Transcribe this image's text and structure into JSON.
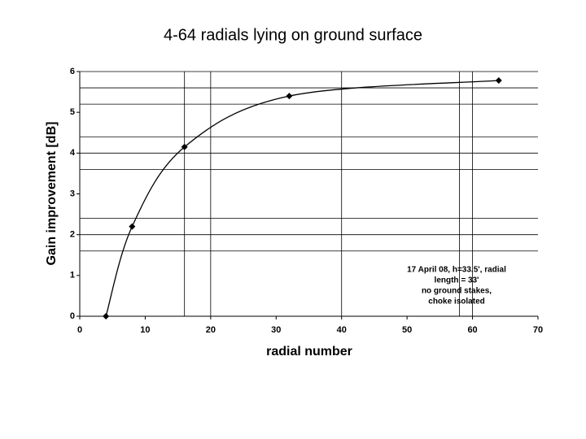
{
  "chart_data": {
    "type": "line",
    "title": "4-64 radials lying on ground surface",
    "x_label": "radial number",
    "y_label": "Gain improvement [dB]",
    "x": [
      4,
      8,
      16,
      32,
      64
    ],
    "series": [
      {
        "name": "Gain improvement",
        "color": "#000000",
        "values": [
          0,
          2.2,
          4.15,
          5.4,
          5.78
        ]
      }
    ],
    "xlim": [
      0,
      70
    ],
    "xticks": [
      0,
      10,
      20,
      30,
      40,
      50,
      60,
      70
    ],
    "ylim": [
      0,
      6
    ],
    "yticks": [
      0,
      1,
      2,
      3,
      4,
      5,
      6
    ],
    "xgrid": [
      16,
      20,
      40,
      58,
      60
    ],
    "ygrid": [
      1.6,
      2.0,
      2.4,
      3.6,
      4.0,
      4.4,
      5.2,
      5.6,
      6
    ],
    "annotation": [
      "17 April 08, h=33.5', radial",
      "length = 33'",
      "no ground stakes,",
      "choke isolated"
    ],
    "legend": false
  }
}
